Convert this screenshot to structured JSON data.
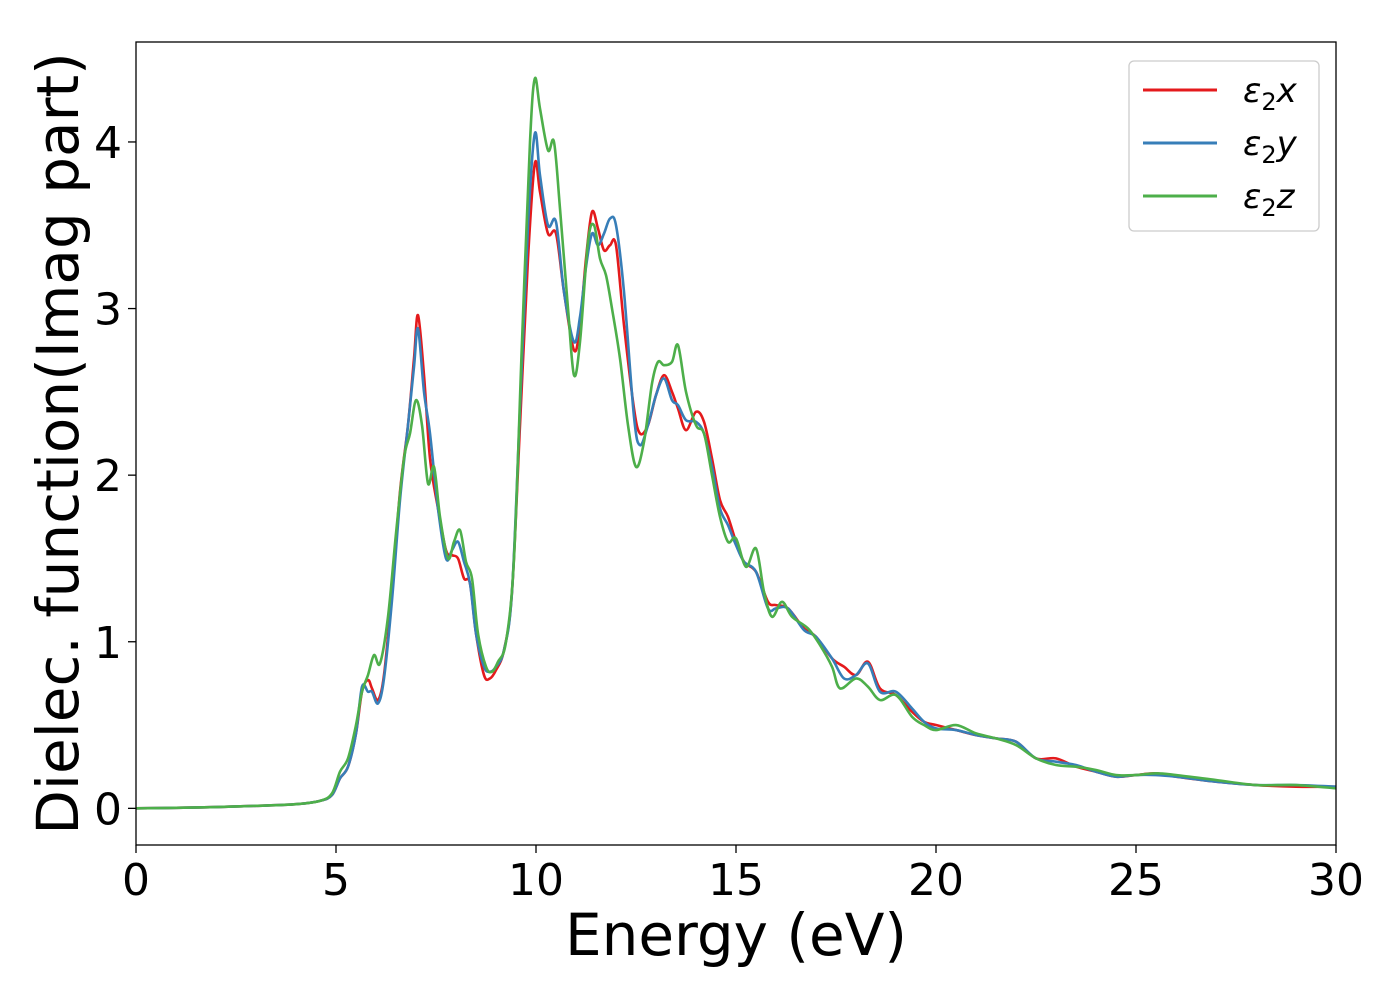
{
  "chart_data": {
    "type": "line",
    "title": "",
    "xlabel": "Energy (eV)",
    "ylabel": "Dielec. function(Imag part)",
    "xlim": [
      0,
      30
    ],
    "ylim": [
      -0.22,
      4.6
    ],
    "xticks": [
      0,
      5,
      10,
      15,
      20,
      25,
      30
    ],
    "yticks": [
      0,
      1,
      2,
      3,
      4
    ],
    "grid": false,
    "legend_position": "top-right",
    "series": [
      {
        "name": "ε₂x",
        "legend_base": "ε",
        "legend_sub": "2",
        "legend_var": "x",
        "color": "#e41a1c",
        "points": [
          [
            0,
            0
          ],
          [
            1,
            0.003
          ],
          [
            2,
            0.008
          ],
          [
            3,
            0.015
          ],
          [
            4,
            0.025
          ],
          [
            4.6,
            0.045
          ],
          [
            4.9,
            0.08
          ],
          [
            5.1,
            0.18
          ],
          [
            5.3,
            0.25
          ],
          [
            5.5,
            0.45
          ],
          [
            5.65,
            0.7
          ],
          [
            5.8,
            0.77
          ],
          [
            5.9,
            0.72
          ],
          [
            6.05,
            0.65
          ],
          [
            6.2,
            0.8
          ],
          [
            6.4,
            1.3
          ],
          [
            6.6,
            1.9
          ],
          [
            6.8,
            2.3
          ],
          [
            6.95,
            2.7
          ],
          [
            7.05,
            2.96
          ],
          [
            7.2,
            2.6
          ],
          [
            7.35,
            2.1
          ],
          [
            7.55,
            1.8
          ],
          [
            7.75,
            1.55
          ],
          [
            7.9,
            1.52
          ],
          [
            8.05,
            1.5
          ],
          [
            8.2,
            1.38
          ],
          [
            8.35,
            1.35
          ],
          [
            8.5,
            1.05
          ],
          [
            8.7,
            0.8
          ],
          [
            8.85,
            0.78
          ],
          [
            9.0,
            0.83
          ],
          [
            9.2,
            0.95
          ],
          [
            9.4,
            1.3
          ],
          [
            9.6,
            2.3
          ],
          [
            9.8,
            3.3
          ],
          [
            9.97,
            3.87
          ],
          [
            10.1,
            3.7
          ],
          [
            10.3,
            3.45
          ],
          [
            10.5,
            3.45
          ],
          [
            10.7,
            3.1
          ],
          [
            10.95,
            2.75
          ],
          [
            11.1,
            2.9
          ],
          [
            11.25,
            3.3
          ],
          [
            11.4,
            3.58
          ],
          [
            11.55,
            3.48
          ],
          [
            11.7,
            3.35
          ],
          [
            11.85,
            3.38
          ],
          [
            12.0,
            3.38
          ],
          [
            12.2,
            2.9
          ],
          [
            12.45,
            2.4
          ],
          [
            12.6,
            2.25
          ],
          [
            12.8,
            2.3
          ],
          [
            13.0,
            2.48
          ],
          [
            13.2,
            2.6
          ],
          [
            13.4,
            2.5
          ],
          [
            13.55,
            2.4
          ],
          [
            13.75,
            2.27
          ],
          [
            14.0,
            2.38
          ],
          [
            14.2,
            2.32
          ],
          [
            14.4,
            2.1
          ],
          [
            14.6,
            1.85
          ],
          [
            14.8,
            1.75
          ],
          [
            15.0,
            1.6
          ],
          [
            15.2,
            1.48
          ],
          [
            15.5,
            1.42
          ],
          [
            15.8,
            1.24
          ],
          [
            16.0,
            1.22
          ],
          [
            16.3,
            1.2
          ],
          [
            16.7,
            1.08
          ],
          [
            17.0,
            1.03
          ],
          [
            17.4,
            0.9
          ],
          [
            17.7,
            0.85
          ],
          [
            18.0,
            0.8
          ],
          [
            18.3,
            0.88
          ],
          [
            18.6,
            0.72
          ],
          [
            19.0,
            0.68
          ],
          [
            19.4,
            0.58
          ],
          [
            19.7,
            0.52
          ],
          [
            20.0,
            0.5
          ],
          [
            20.5,
            0.47
          ],
          [
            21.0,
            0.44
          ],
          [
            21.5,
            0.42
          ],
          [
            22.0,
            0.4
          ],
          [
            22.5,
            0.3
          ],
          [
            23.0,
            0.3
          ],
          [
            23.5,
            0.25
          ],
          [
            24.0,
            0.22
          ],
          [
            24.5,
            0.19
          ],
          [
            25.0,
            0.2
          ],
          [
            25.5,
            0.21
          ],
          [
            26.0,
            0.19
          ],
          [
            27.0,
            0.16
          ],
          [
            28.0,
            0.14
          ],
          [
            29.0,
            0.13
          ],
          [
            30.0,
            0.13
          ]
        ]
      },
      {
        "name": "ε₂y",
        "legend_base": "ε",
        "legend_sub": "2",
        "legend_var": "y",
        "color": "#377eb8",
        "points": [
          [
            0,
            0
          ],
          [
            1,
            0.003
          ],
          [
            2,
            0.008
          ],
          [
            3,
            0.015
          ],
          [
            4,
            0.025
          ],
          [
            4.6,
            0.045
          ],
          [
            4.9,
            0.08
          ],
          [
            5.1,
            0.18
          ],
          [
            5.3,
            0.25
          ],
          [
            5.5,
            0.45
          ],
          [
            5.65,
            0.73
          ],
          [
            5.8,
            0.7
          ],
          [
            5.9,
            0.7
          ],
          [
            6.05,
            0.63
          ],
          [
            6.2,
            0.78
          ],
          [
            6.4,
            1.25
          ],
          [
            6.6,
            1.85
          ],
          [
            6.8,
            2.3
          ],
          [
            6.95,
            2.65
          ],
          [
            7.05,
            2.88
          ],
          [
            7.2,
            2.5
          ],
          [
            7.35,
            2.25
          ],
          [
            7.55,
            1.8
          ],
          [
            7.75,
            1.5
          ],
          [
            7.9,
            1.55
          ],
          [
            8.05,
            1.6
          ],
          [
            8.2,
            1.48
          ],
          [
            8.35,
            1.35
          ],
          [
            8.5,
            1.05
          ],
          [
            8.7,
            0.85
          ],
          [
            8.85,
            0.82
          ],
          [
            9.0,
            0.85
          ],
          [
            9.2,
            0.95
          ],
          [
            9.4,
            1.3
          ],
          [
            9.6,
            2.4
          ],
          [
            9.8,
            3.5
          ],
          [
            9.97,
            4.05
          ],
          [
            10.1,
            3.8
          ],
          [
            10.3,
            3.5
          ],
          [
            10.5,
            3.52
          ],
          [
            10.7,
            3.1
          ],
          [
            10.95,
            2.8
          ],
          [
            11.1,
            2.95
          ],
          [
            11.25,
            3.25
          ],
          [
            11.4,
            3.45
          ],
          [
            11.55,
            3.38
          ],
          [
            11.7,
            3.45
          ],
          [
            11.85,
            3.54
          ],
          [
            12.0,
            3.5
          ],
          [
            12.2,
            3.1
          ],
          [
            12.45,
            2.35
          ],
          [
            12.6,
            2.18
          ],
          [
            12.8,
            2.3
          ],
          [
            13.0,
            2.48
          ],
          [
            13.2,
            2.58
          ],
          [
            13.4,
            2.45
          ],
          [
            13.55,
            2.42
          ],
          [
            13.75,
            2.33
          ],
          [
            14.0,
            2.32
          ],
          [
            14.2,
            2.25
          ],
          [
            14.4,
            2.05
          ],
          [
            14.6,
            1.8
          ],
          [
            14.8,
            1.7
          ],
          [
            15.0,
            1.58
          ],
          [
            15.2,
            1.48
          ],
          [
            15.5,
            1.42
          ],
          [
            15.8,
            1.2
          ],
          [
            16.0,
            1.2
          ],
          [
            16.3,
            1.2
          ],
          [
            16.7,
            1.07
          ],
          [
            17.0,
            1.03
          ],
          [
            17.4,
            0.9
          ],
          [
            17.7,
            0.78
          ],
          [
            18.0,
            0.8
          ],
          [
            18.3,
            0.87
          ],
          [
            18.6,
            0.7
          ],
          [
            19.0,
            0.7
          ],
          [
            19.4,
            0.6
          ],
          [
            19.7,
            0.52
          ],
          [
            20.0,
            0.48
          ],
          [
            20.5,
            0.47
          ],
          [
            21.0,
            0.44
          ],
          [
            21.5,
            0.42
          ],
          [
            22.0,
            0.4
          ],
          [
            22.5,
            0.3
          ],
          [
            23.0,
            0.28
          ],
          [
            23.5,
            0.26
          ],
          [
            24.0,
            0.22
          ],
          [
            24.5,
            0.19
          ],
          [
            25.0,
            0.2
          ],
          [
            25.5,
            0.2
          ],
          [
            26.0,
            0.19
          ],
          [
            27.0,
            0.16
          ],
          [
            28.0,
            0.14
          ],
          [
            29.0,
            0.14
          ],
          [
            30.0,
            0.13
          ]
        ]
      },
      {
        "name": "ε₂z",
        "legend_base": "ε",
        "legend_sub": "2",
        "legend_var": "z",
        "color": "#4daf4a",
        "points": [
          [
            0,
            0
          ],
          [
            1,
            0.003
          ],
          [
            2,
            0.008
          ],
          [
            3,
            0.015
          ],
          [
            4,
            0.025
          ],
          [
            4.6,
            0.045
          ],
          [
            4.9,
            0.09
          ],
          [
            5.1,
            0.22
          ],
          [
            5.3,
            0.3
          ],
          [
            5.5,
            0.5
          ],
          [
            5.65,
            0.7
          ],
          [
            5.8,
            0.8
          ],
          [
            5.95,
            0.92
          ],
          [
            6.1,
            0.87
          ],
          [
            6.3,
            1.15
          ],
          [
            6.5,
            1.65
          ],
          [
            6.7,
            2.1
          ],
          [
            6.85,
            2.25
          ],
          [
            7.0,
            2.45
          ],
          [
            7.15,
            2.3
          ],
          [
            7.3,
            1.95
          ],
          [
            7.45,
            2.05
          ],
          [
            7.6,
            1.75
          ],
          [
            7.8,
            1.5
          ],
          [
            7.95,
            1.6
          ],
          [
            8.1,
            1.67
          ],
          [
            8.25,
            1.48
          ],
          [
            8.4,
            1.38
          ],
          [
            8.55,
            1.05
          ],
          [
            8.75,
            0.85
          ],
          [
            8.9,
            0.82
          ],
          [
            9.05,
            0.88
          ],
          [
            9.25,
            1.0
          ],
          [
            9.45,
            1.5
          ],
          [
            9.65,
            2.8
          ],
          [
            9.85,
            4.0
          ],
          [
            9.97,
            4.38
          ],
          [
            10.1,
            4.2
          ],
          [
            10.3,
            3.95
          ],
          [
            10.45,
            4.0
          ],
          [
            10.6,
            3.6
          ],
          [
            10.8,
            3.0
          ],
          [
            10.95,
            2.6
          ],
          [
            11.1,
            2.8
          ],
          [
            11.3,
            3.4
          ],
          [
            11.45,
            3.5
          ],
          [
            11.6,
            3.3
          ],
          [
            11.75,
            3.2
          ],
          [
            11.9,
            3.0
          ],
          [
            12.1,
            2.7
          ],
          [
            12.3,
            2.3
          ],
          [
            12.5,
            2.05
          ],
          [
            12.7,
            2.2
          ],
          [
            12.9,
            2.55
          ],
          [
            13.05,
            2.68
          ],
          [
            13.2,
            2.66
          ],
          [
            13.4,
            2.68
          ],
          [
            13.55,
            2.78
          ],
          [
            13.75,
            2.5
          ],
          [
            14.0,
            2.3
          ],
          [
            14.2,
            2.25
          ],
          [
            14.4,
            2.0
          ],
          [
            14.6,
            1.75
          ],
          [
            14.8,
            1.6
          ],
          [
            15.0,
            1.62
          ],
          [
            15.25,
            1.45
          ],
          [
            15.5,
            1.56
          ],
          [
            15.7,
            1.3
          ],
          [
            15.9,
            1.15
          ],
          [
            16.15,
            1.24
          ],
          [
            16.4,
            1.15
          ],
          [
            16.8,
            1.08
          ],
          [
            17.1,
            0.98
          ],
          [
            17.4,
            0.85
          ],
          [
            17.6,
            0.72
          ],
          [
            18.0,
            0.78
          ],
          [
            18.3,
            0.73
          ],
          [
            18.6,
            0.65
          ],
          [
            19.0,
            0.68
          ],
          [
            19.4,
            0.55
          ],
          [
            19.7,
            0.5
          ],
          [
            20.0,
            0.47
          ],
          [
            20.5,
            0.5
          ],
          [
            21.0,
            0.45
          ],
          [
            21.5,
            0.42
          ],
          [
            22.0,
            0.38
          ],
          [
            22.5,
            0.3
          ],
          [
            23.0,
            0.26
          ],
          [
            23.5,
            0.25
          ],
          [
            24.0,
            0.23
          ],
          [
            24.5,
            0.2
          ],
          [
            25.0,
            0.2
          ],
          [
            25.5,
            0.21
          ],
          [
            26.0,
            0.2
          ],
          [
            27.0,
            0.17
          ],
          [
            28.0,
            0.14
          ],
          [
            29.0,
            0.14
          ],
          [
            30.0,
            0.12
          ]
        ]
      }
    ]
  }
}
